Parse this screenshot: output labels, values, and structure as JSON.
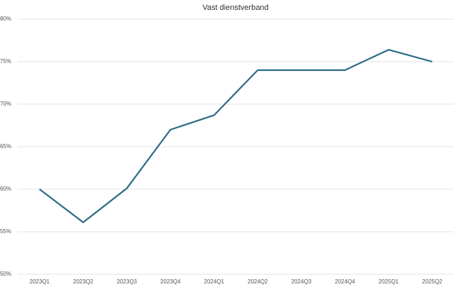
{
  "chart_data": {
    "type": "line",
    "title": "Vast dienstverband",
    "categories": [
      "2023Q1",
      "2023Q2",
      "2023Q3",
      "2023Q4",
      "2024Q1",
      "2024Q2",
      "2024Q3",
      "2024Q4",
      "2025Q1",
      "2025Q2"
    ],
    "series": [
      {
        "name": "Vast dienstverband",
        "color": "#2b6a84",
        "values": [
          60,
          56.1,
          60.1,
          67,
          68.7,
          74,
          74,
          74,
          76.4,
          75
        ]
      }
    ],
    "ylim": [
      50,
      80
    ],
    "yticks": [
      {
        "value": 50,
        "label": "50%"
      },
      {
        "value": 55,
        "label": "55%"
      },
      {
        "value": 60,
        "label": "60%"
      },
      {
        "value": 65,
        "label": "65%"
      },
      {
        "value": 70,
        "label": "70%"
      },
      {
        "value": 75,
        "label": "75%"
      },
      {
        "value": 80,
        "label": "80%"
      }
    ],
    "grid": true
  }
}
